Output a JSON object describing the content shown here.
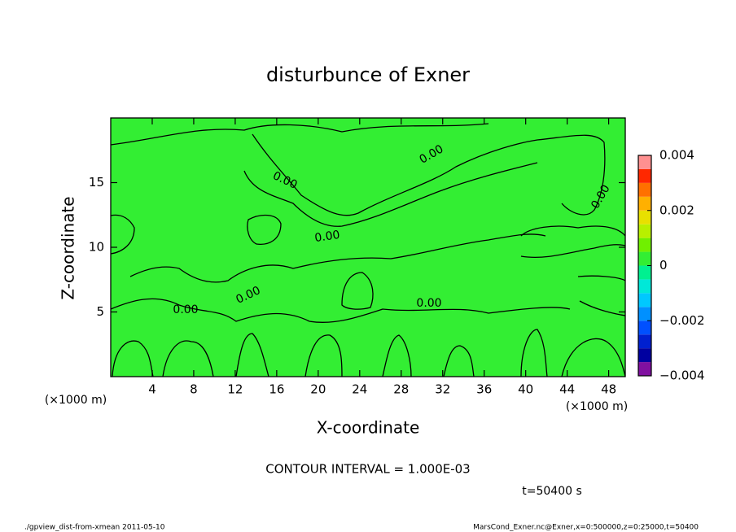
{
  "chart_data": {
    "type": "contour",
    "title": "disturbunce of Exner",
    "x_label": "X-coordinate",
    "y_label": "Z-coordinate",
    "x_unit": "(×1000 m)",
    "y_unit": "(×1000 m)",
    "xlim": [
      0,
      49.6
    ],
    "ylim": [
      0,
      20
    ],
    "xticks": [
      4,
      8,
      12,
      16,
      20,
      24,
      28,
      32,
      36,
      40,
      44,
      48
    ],
    "yticks": [
      5,
      10,
      15
    ],
    "background_color": "#33ee33",
    "contour_labels": [
      "0.00",
      "0.00",
      "0.00",
      "0.00",
      "0.00",
      "0.00",
      "0.00"
    ],
    "colorbar": {
      "levels": [
        -0.004,
        -0.0035,
        -0.003,
        -0.0025,
        -0.002,
        -0.0015,
        -0.001,
        -0.0005,
        0,
        0.0005,
        0.001,
        0.0015,
        0.002,
        0.0025,
        0.003,
        0.0035,
        0.004
      ],
      "colors": [
        "#8010a0",
        "#0000a0",
        "#0020d0",
        "#0050ff",
        "#0090ff",
        "#00c8ff",
        "#00e8d8",
        "#00f090",
        "#33ee33",
        "#70f000",
        "#b8f000",
        "#e8e000",
        "#ffb000",
        "#ff7000",
        "#ff2800",
        "#ff9090"
      ],
      "ticks": [
        {
          "value": -0.004,
          "label": "−0.004"
        },
        {
          "value": -0.002,
          "label": "−0.002"
        },
        0,
        0.002,
        0.004
      ]
    },
    "contour_interval": "CONTOUR INTERVAL = 1.000E-03",
    "time_label": "t=50400 s",
    "footer_left": "./gpview_dist-from-xmean  2011-05-10",
    "footer_right": "MarsCond_Exner.nc@Exner,x=0:500000,z=0:25000,t=50400"
  }
}
